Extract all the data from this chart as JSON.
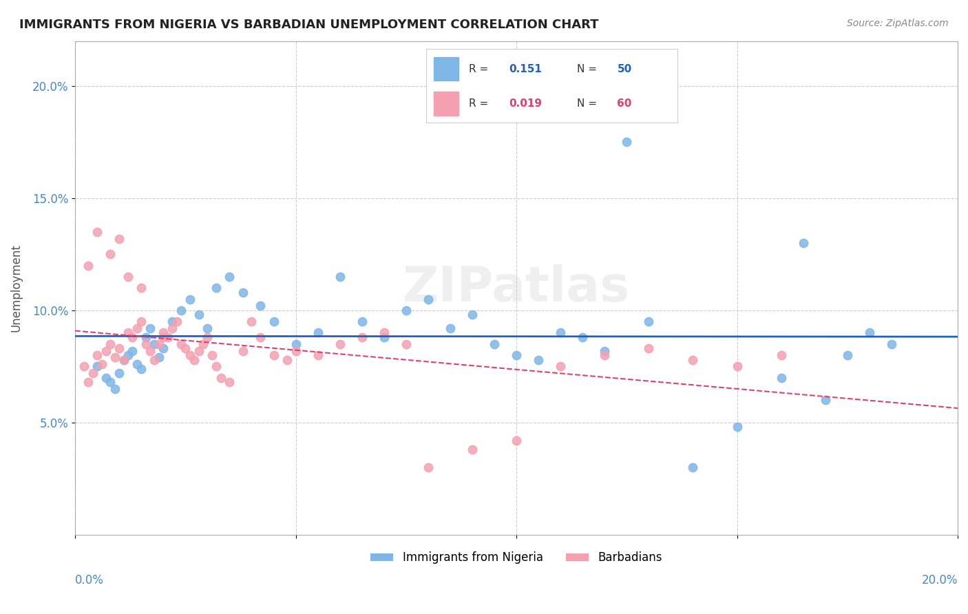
{
  "title": "IMMIGRANTS FROM NIGERIA VS BARBADIAN UNEMPLOYMENT CORRELATION CHART",
  "source_text": "Source: ZipAtlas.com",
  "ylabel": "Unemployment",
  "y_ticks": [
    0.05,
    0.1,
    0.15,
    0.2
  ],
  "y_tick_labels": [
    "5.0%",
    "10.0%",
    "15.0%",
    "20.0%"
  ],
  "xlim": [
    0.0,
    0.2
  ],
  "ylim": [
    0.0,
    0.22
  ],
  "series1_label": "Immigrants from Nigeria",
  "series1_R": "0.151",
  "series1_N": "50",
  "series1_color": "#7EB6E8",
  "series1_line_color": "#2060C0",
  "series2_label": "Barbadians",
  "series2_R": "0.019",
  "series2_N": "60",
  "series2_color": "#F4A0B0",
  "series2_line_color": "#E04070",
  "watermark": "ZIPatlas",
  "background_color": "#FFFFFF",
  "grid_color": "#CCCCCC",
  "axis_color": "#AAAAAA",
  "title_color": "#222222",
  "tick_label_color": "#4488CC",
  "series1_x": [
    0.005,
    0.007,
    0.008,
    0.009,
    0.01,
    0.011,
    0.012,
    0.013,
    0.014,
    0.015,
    0.016,
    0.017,
    0.018,
    0.019,
    0.02,
    0.022,
    0.024,
    0.026,
    0.028,
    0.03,
    0.032,
    0.035,
    0.038,
    0.042,
    0.045,
    0.05,
    0.055,
    0.06,
    0.065,
    0.07,
    0.075,
    0.08,
    0.085,
    0.09,
    0.095,
    0.1,
    0.105,
    0.11,
    0.115,
    0.12,
    0.125,
    0.13,
    0.14,
    0.15,
    0.16,
    0.165,
    0.17,
    0.175,
    0.18,
    0.185
  ],
  "series1_y": [
    0.075,
    0.07,
    0.068,
    0.065,
    0.072,
    0.078,
    0.08,
    0.082,
    0.076,
    0.074,
    0.088,
    0.092,
    0.085,
    0.079,
    0.083,
    0.095,
    0.1,
    0.105,
    0.098,
    0.092,
    0.11,
    0.115,
    0.108,
    0.102,
    0.095,
    0.085,
    0.09,
    0.115,
    0.095,
    0.088,
    0.1,
    0.105,
    0.092,
    0.098,
    0.085,
    0.08,
    0.078,
    0.09,
    0.088,
    0.082,
    0.175,
    0.095,
    0.03,
    0.048,
    0.07,
    0.13,
    0.06,
    0.08,
    0.09,
    0.085
  ],
  "series2_x": [
    0.002,
    0.003,
    0.004,
    0.005,
    0.006,
    0.007,
    0.008,
    0.009,
    0.01,
    0.011,
    0.012,
    0.013,
    0.014,
    0.015,
    0.016,
    0.017,
    0.018,
    0.019,
    0.02,
    0.021,
    0.022,
    0.023,
    0.024,
    0.025,
    0.026,
    0.027,
    0.028,
    0.029,
    0.03,
    0.031,
    0.032,
    0.033,
    0.035,
    0.038,
    0.04,
    0.042,
    0.045,
    0.048,
    0.05,
    0.055,
    0.06,
    0.065,
    0.07,
    0.075,
    0.08,
    0.09,
    0.1,
    0.11,
    0.12,
    0.13,
    0.14,
    0.15,
    0.16,
    0.003,
    0.005,
    0.008,
    0.01,
    0.012,
    0.015,
    0.02
  ],
  "series2_y": [
    0.075,
    0.068,
    0.072,
    0.08,
    0.076,
    0.082,
    0.085,
    0.079,
    0.083,
    0.078,
    0.09,
    0.088,
    0.092,
    0.095,
    0.085,
    0.082,
    0.078,
    0.085,
    0.09,
    0.088,
    0.092,
    0.095,
    0.085,
    0.083,
    0.08,
    0.078,
    0.082,
    0.085,
    0.088,
    0.08,
    0.075,
    0.07,
    0.068,
    0.082,
    0.095,
    0.088,
    0.08,
    0.078,
    0.082,
    0.08,
    0.085,
    0.088,
    0.09,
    0.085,
    0.03,
    0.038,
    0.042,
    0.075,
    0.08,
    0.083,
    0.078,
    0.075,
    0.08,
    0.12,
    0.135,
    0.125,
    0.132,
    0.115,
    0.11,
    0.088
  ]
}
